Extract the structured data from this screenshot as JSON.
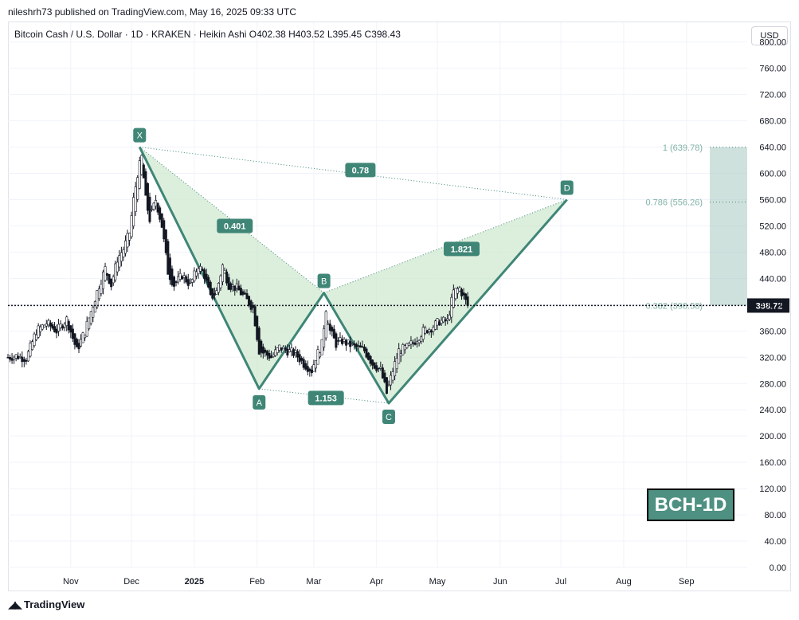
{
  "publish_line": "nileshrh73 published on TradingView.com, May 16, 2025 09:33 UTC",
  "legend": "Bitcoin Cash / U.S. Dollar · 1D · KRAKEN · Heikin Ashi   O402.38  H403.52  L395.45  C398.43",
  "currency_button": "USD",
  "brand": "TradingView",
  "badge": "BCH-1D",
  "chart_data": {
    "type": "candlestick",
    "ylim": [
      0,
      830
    ],
    "yticks": [
      0,
      40,
      80,
      120,
      160,
      200,
      240,
      280,
      320,
      360,
      400,
      440,
      480,
      520,
      560,
      600,
      640,
      680,
      720,
      760,
      800
    ],
    "ytick_labels": [
      "0.00",
      "40.00",
      "80.00",
      "120.00",
      "160.00",
      "200.00",
      "240.00",
      "280.00",
      "320.00",
      "360.00",
      "400.00",
      "440.00",
      "480.00",
      "520.00",
      "560.00",
      "600.00",
      "640.00",
      "680.00",
      "720.00",
      "760.00",
      "800.00"
    ],
    "xlim": [
      "2024-10-01",
      "2025-10-01"
    ],
    "xticks": [
      {
        "date": "2024-11-01",
        "label": "Nov",
        "bold": false
      },
      {
        "date": "2024-12-01",
        "label": "Dec",
        "bold": false
      },
      {
        "date": "2025-01-01",
        "label": "2025",
        "bold": true
      },
      {
        "date": "2025-02-01",
        "label": "Feb",
        "bold": false
      },
      {
        "date": "2025-03-01",
        "label": "Mar",
        "bold": false
      },
      {
        "date": "2025-04-01",
        "label": "Apr",
        "bold": false
      },
      {
        "date": "2025-05-01",
        "label": "May",
        "bold": false
      },
      {
        "date": "2025-06-01",
        "label": "Jun",
        "bold": false
      },
      {
        "date": "2025-07-01",
        "label": "Jul",
        "bold": false
      },
      {
        "date": "2025-08-01",
        "label": "Aug",
        "bold": false
      },
      {
        "date": "2025-09-01",
        "label": "Sep",
        "bold": false
      }
    ],
    "last_price": 398.72,
    "last_price_label": "398.72",
    "price_path": [
      [
        "2024-10-01",
        320
      ],
      [
        "2024-10-05",
        322
      ],
      [
        "2024-10-10",
        318
      ],
      [
        "2024-10-15",
        360
      ],
      [
        "2024-10-20",
        372
      ],
      [
        "2024-10-25",
        360
      ],
      [
        "2024-10-30",
        378
      ],
      [
        "2024-11-04",
        330
      ],
      [
        "2024-11-08",
        360
      ],
      [
        "2024-11-12",
        400
      ],
      [
        "2024-11-15",
        430
      ],
      [
        "2024-11-18",
        455
      ],
      [
        "2024-11-21",
        430
      ],
      [
        "2024-11-24",
        470
      ],
      [
        "2024-11-27",
        485
      ],
      [
        "2024-11-30",
        510
      ],
      [
        "2024-12-02",
        560
      ],
      [
        "2024-12-04",
        600
      ],
      [
        "2024-12-06",
        625
      ],
      [
        "2024-12-08",
        560
      ],
      [
        "2024-12-10",
        530
      ],
      [
        "2024-12-13",
        560
      ],
      [
        "2024-12-16",
        520
      ],
      [
        "2024-12-19",
        450
      ],
      [
        "2024-12-22",
        430
      ],
      [
        "2024-12-26",
        445
      ],
      [
        "2024-12-30",
        430
      ],
      [
        "2025-01-03",
        460
      ],
      [
        "2025-01-06",
        445
      ],
      [
        "2025-01-09",
        410
      ],
      [
        "2025-01-12",
        420
      ],
      [
        "2025-01-15",
        460
      ],
      [
        "2025-01-18",
        430
      ],
      [
        "2025-01-22",
        425
      ],
      [
        "2025-01-26",
        410
      ],
      [
        "2025-01-30",
        395
      ],
      [
        "2025-02-02",
        330
      ],
      [
        "2025-02-05",
        325
      ],
      [
        "2025-02-08",
        320
      ],
      [
        "2025-02-12",
        335
      ],
      [
        "2025-02-16",
        330
      ],
      [
        "2025-02-20",
        325
      ],
      [
        "2025-02-24",
        310
      ],
      [
        "2025-02-28",
        300
      ],
      [
        "2025-03-02",
        320
      ],
      [
        "2025-03-05",
        340
      ],
      [
        "2025-03-07",
        395
      ],
      [
        "2025-03-09",
        360
      ],
      [
        "2025-03-12",
        340
      ],
      [
        "2025-03-15",
        345
      ],
      [
        "2025-03-18",
        340
      ],
      [
        "2025-03-22",
        335
      ],
      [
        "2025-03-26",
        330
      ],
      [
        "2025-03-30",
        310
      ],
      [
        "2025-04-03",
        300
      ],
      [
        "2025-04-06",
        265
      ],
      [
        "2025-04-09",
        300
      ],
      [
        "2025-04-12",
        330
      ],
      [
        "2025-04-16",
        335
      ],
      [
        "2025-04-20",
        345
      ],
      [
        "2025-04-24",
        360
      ],
      [
        "2025-04-28",
        365
      ],
      [
        "2025-05-02",
        375
      ],
      [
        "2025-05-06",
        375
      ],
      [
        "2025-05-09",
        420
      ],
      [
        "2025-05-12",
        425
      ],
      [
        "2025-05-16",
        398.43
      ]
    ],
    "harmonic_points": [
      {
        "label": "X",
        "date": "2024-12-05",
        "price": 640
      },
      {
        "label": "A",
        "date": "2025-02-02",
        "price": 272
      },
      {
        "label": "B",
        "date": "2025-03-06",
        "price": 418
      },
      {
        "label": "C",
        "date": "2025-04-07",
        "price": 250
      },
      {
        "label": "D",
        "date": "2025-07-04",
        "price": 560
      }
    ],
    "ratio_labels": [
      {
        "text": "0.401",
        "date": "2025-01-21",
        "price": 520
      },
      {
        "text": "0.78",
        "date": "2025-03-24",
        "price": 605
      },
      {
        "text": "1.821",
        "date": "2025-05-13",
        "price": 485
      },
      {
        "text": "1.153",
        "date": "2025-03-07",
        "price": 258
      }
    ],
    "fib_levels": [
      {
        "ratio": "1",
        "price": 639.78,
        "label": "1 (639.78)"
      },
      {
        "ratio": "0.786",
        "price": 556.26,
        "label": "0.786 (556.26)"
      },
      {
        "ratio": "0.382",
        "price": 398.58,
        "label": "0.382 (398.58)"
      }
    ],
    "colors": {
      "up": "#089981",
      "down": "#131722",
      "pattern_line": "#3f8677",
      "pattern_fill": "#cde8cd",
      "marker": "#3f8677",
      "fib_zone": "#a8c8c1",
      "fib_text": "#82b3a6"
    }
  }
}
